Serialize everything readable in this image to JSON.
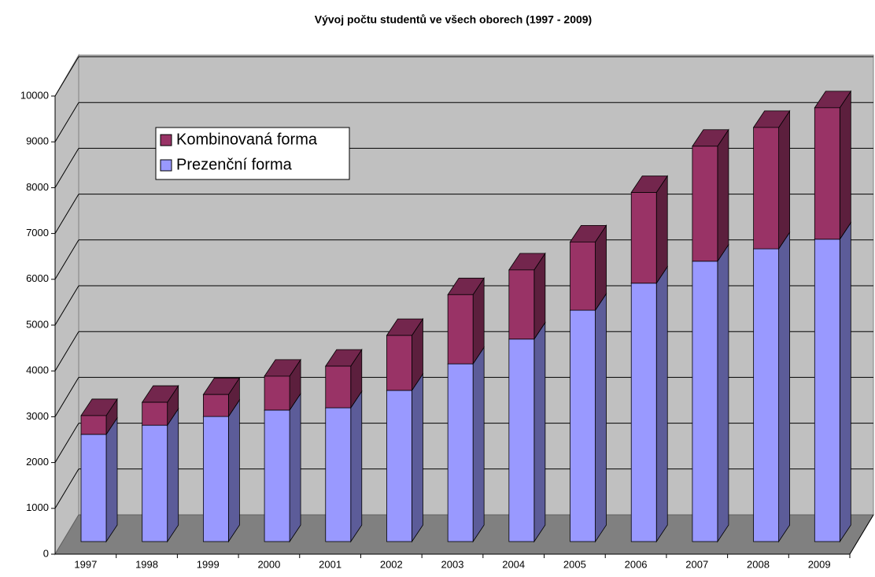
{
  "chart_data": {
    "type": "bar3d_stacked",
    "title": "Vývoj počtu studentů ve všech oborech (1997 - 2009)",
    "categories": [
      "1997",
      "1998",
      "1999",
      "2000",
      "2001",
      "2002",
      "2003",
      "2004",
      "2005",
      "2006",
      "2007",
      "2008",
      "2009"
    ],
    "series": [
      {
        "name": "Prezenční forma",
        "color": "#9999ff",
        "values": [
          2340,
          2540,
          2730,
          2870,
          2920,
          3300,
          3880,
          4420,
          5050,
          5640,
          6120,
          6390,
          6600
        ]
      },
      {
        "name": "Kombinovaná forma",
        "color": "#993366",
        "values": [
          410,
          500,
          480,
          740,
          910,
          1200,
          1510,
          1510,
          1490,
          1980,
          2510,
          2650,
          2870
        ]
      }
    ],
    "ylim": [
      0,
      10000
    ],
    "yticks": [
      0,
      1000,
      2000,
      3000,
      4000,
      5000,
      6000,
      7000,
      8000,
      9000,
      10000
    ],
    "grid": true,
    "legend": "upper left"
  }
}
